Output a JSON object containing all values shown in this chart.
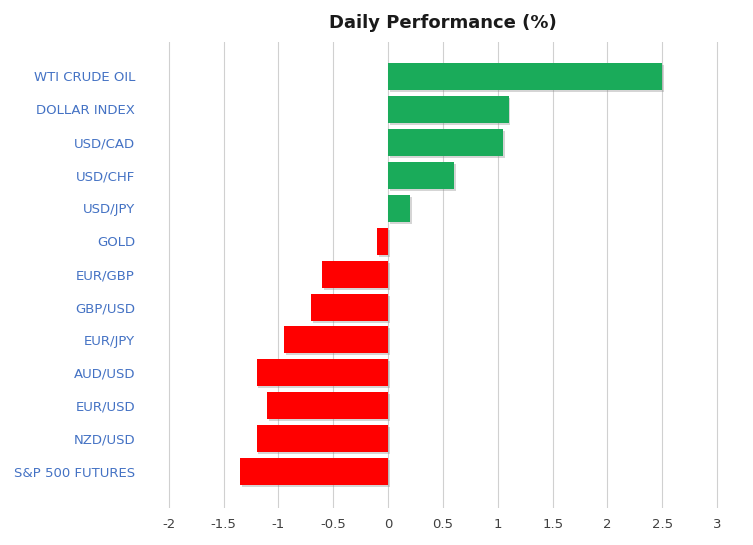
{
  "title": "Daily Performance (%)",
  "categories": [
    "S&P 500 FUTURES",
    "NZD/USD",
    "EUR/USD",
    "AUD/USD",
    "EUR/JPY",
    "GBP/USD",
    "EUR/GBP",
    "GOLD",
    "USD/JPY",
    "USD/CHF",
    "USD/CAD",
    "DOLLAR INDEX",
    "WTI CRUDE OIL"
  ],
  "values": [
    -1.35,
    -1.2,
    -1.1,
    -1.2,
    -0.95,
    -0.7,
    -0.6,
    -0.1,
    0.2,
    0.6,
    1.05,
    1.1,
    2.5
  ],
  "xlim": [
    -2.2,
    3.2
  ],
  "xticks": [
    -2,
    -1.5,
    -1,
    -0.5,
    0,
    0.5,
    1,
    1.5,
    2,
    2.5,
    3
  ],
  "green_color": "#1aab5a",
  "red_color": "#ff0000",
  "background_color": "#ffffff",
  "grid_color": "#d0d0d0",
  "title_fontsize": 13,
  "label_fontsize": 9.5,
  "tick_fontsize": 9.5,
  "label_color": "#4472c4",
  "bar_height": 0.82
}
